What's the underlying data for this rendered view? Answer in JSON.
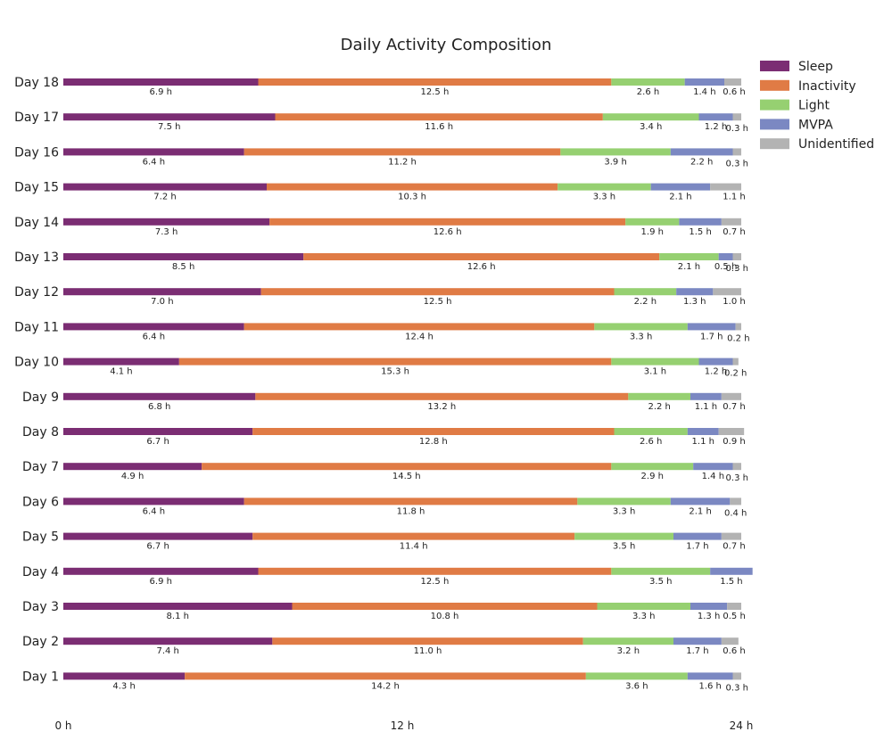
{
  "chart_data": {
    "type": "bar",
    "orientation": "horizontal",
    "stacked": true,
    "title": "Daily Activity Composition",
    "xlabel": "",
    "ylabel": "",
    "xlim": [
      0,
      24
    ],
    "x_ticks": [
      {
        "value": 0,
        "label": "0 h"
      },
      {
        "value": 12,
        "label": "12 h"
      },
      {
        "value": 24,
        "label": "24 h"
      }
    ],
    "grid": false,
    "legend_position": "top-right",
    "unit_suffix": " h",
    "categories": [
      "Day 18",
      "Day 17",
      "Day 16",
      "Day 15",
      "Day 14",
      "Day 13",
      "Day 12",
      "Day 11",
      "Day 10",
      "Day 9",
      "Day 8",
      "Day 7",
      "Day 6",
      "Day 5",
      "Day 4",
      "Day 3",
      "Day 2",
      "Day 1"
    ],
    "series": [
      {
        "name": "Sleep",
        "color": "#7b2d73",
        "values": [
          6.9,
          7.5,
          6.4,
          7.2,
          7.3,
          8.5,
          7.0,
          6.4,
          4.1,
          6.8,
          6.7,
          4.9,
          6.4,
          6.7,
          6.9,
          8.1,
          7.4,
          4.3
        ]
      },
      {
        "name": "Inactivity",
        "color": "#e07b45",
        "values": [
          12.5,
          11.6,
          11.2,
          10.3,
          12.6,
          12.6,
          12.5,
          12.4,
          15.3,
          13.2,
          12.8,
          14.5,
          11.8,
          11.4,
          12.5,
          10.8,
          11.0,
          14.2
        ]
      },
      {
        "name": "Light",
        "color": "#96d071",
        "values": [
          2.6,
          3.4,
          3.9,
          3.3,
          1.9,
          2.1,
          2.2,
          3.3,
          3.1,
          2.2,
          2.6,
          2.9,
          3.3,
          3.5,
          3.5,
          3.3,
          3.2,
          3.6
        ]
      },
      {
        "name": "MVPA",
        "color": "#7b88c2",
        "values": [
          1.4,
          1.2,
          2.2,
          2.1,
          1.5,
          0.5,
          1.3,
          1.7,
          1.2,
          1.1,
          1.1,
          1.4,
          2.1,
          1.7,
          1.5,
          1.3,
          1.7,
          1.6
        ]
      },
      {
        "name": "Unidentified",
        "color": "#b3b3b3",
        "values": [
          0.6,
          0.3,
          0.3,
          1.1,
          0.7,
          0.3,
          1.0,
          0.2,
          0.2,
          0.7,
          0.9,
          0.3,
          0.4,
          0.7,
          0.0,
          0.5,
          0.6,
          0.3
        ]
      }
    ]
  }
}
